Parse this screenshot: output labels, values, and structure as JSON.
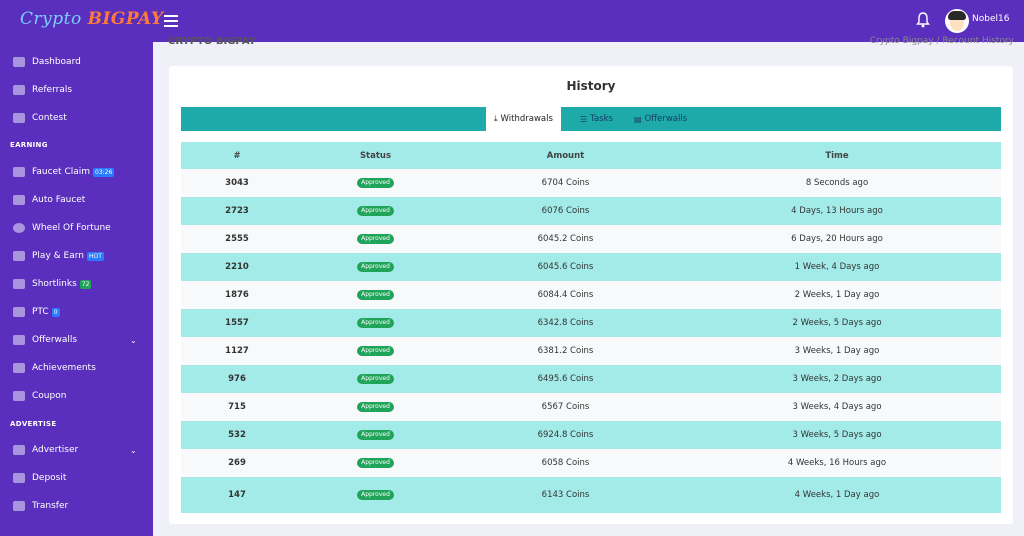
{
  "brand": {
    "part1": "Crypto",
    "part2": "BIGPAY"
  },
  "header": {
    "username": "Nobel16"
  },
  "breadcrumb": {
    "left": "CRYPTO BIGPAY",
    "right": "Crypto Bigpay  /  Recount History"
  },
  "sidebar": {
    "items": [
      {
        "label": "Dashboard"
      },
      {
        "label": "Referrals"
      },
      {
        "label": "Contest"
      },
      {
        "label": "Faucet Claim",
        "badge": "03:26"
      },
      {
        "label": "Auto Faucet"
      },
      {
        "label": "Wheel Of Fortune"
      },
      {
        "label": "Play & Earn",
        "badge": "HOT"
      },
      {
        "label": "Shortlinks",
        "badge": "72"
      },
      {
        "label": "PTC",
        "badge": "0"
      },
      {
        "label": "Offerwalls"
      },
      {
        "label": "Achievements"
      },
      {
        "label": "Coupon"
      },
      {
        "label": "Advertiser"
      },
      {
        "label": "Deposit"
      },
      {
        "label": "Transfer"
      }
    ],
    "sections": {
      "earning": "EARNING",
      "advertise": "ADVERTISE"
    }
  },
  "card": {
    "title": "History"
  },
  "tabs": [
    {
      "label": "Withdrawals",
      "active": true
    },
    {
      "label": "Tasks"
    },
    {
      "label": "Offerwalls"
    }
  ],
  "table": {
    "headers": [
      "#",
      "Status",
      "Amount",
      "Time"
    ],
    "rows": [
      {
        "id": "3043",
        "status": "Approved",
        "amount": "6704 Coins",
        "time": "8 Seconds ago"
      },
      {
        "id": "2723",
        "status": "Approved",
        "amount": "6076 Coins",
        "time": "4 Days, 13 Hours ago"
      },
      {
        "id": "2555",
        "status": "Approved",
        "amount": "6045.2 Coins",
        "time": "6 Days, 20 Hours ago"
      },
      {
        "id": "2210",
        "status": "Approved",
        "amount": "6045.6 Coins",
        "time": "1 Week, 4 Days ago"
      },
      {
        "id": "1876",
        "status": "Approved",
        "amount": "6084.4 Coins",
        "time": "2 Weeks, 1 Day ago"
      },
      {
        "id": "1557",
        "status": "Approved",
        "amount": "6342.8 Coins",
        "time": "2 Weeks, 5 Days ago"
      },
      {
        "id": "1127",
        "status": "Approved",
        "amount": "6381.2 Coins",
        "time": "3 Weeks, 1 Day ago"
      },
      {
        "id": "976",
        "status": "Approved",
        "amount": "6495.6 Coins",
        "time": "3 Weeks, 2 Days ago"
      },
      {
        "id": "715",
        "status": "Approved",
        "amount": "6567 Coins",
        "time": "3 Weeks, 4 Days ago"
      },
      {
        "id": "532",
        "status": "Approved",
        "amount": "6924.8 Coins",
        "time": "3 Weeks, 5 Days ago"
      },
      {
        "id": "269",
        "status": "Approved",
        "amount": "6058 Coins",
        "time": "4 Weeks, 16 Hours ago"
      },
      {
        "id": "147",
        "status": "Approved",
        "amount": "6143 Coins",
        "time": "4 Weeks, 1 Day ago"
      }
    ]
  },
  "colors": {
    "primary": "#5a2fbd",
    "tabbar": "#1daaa9",
    "row_alt": "#a3ebe8",
    "approved": "#1fa45a"
  }
}
